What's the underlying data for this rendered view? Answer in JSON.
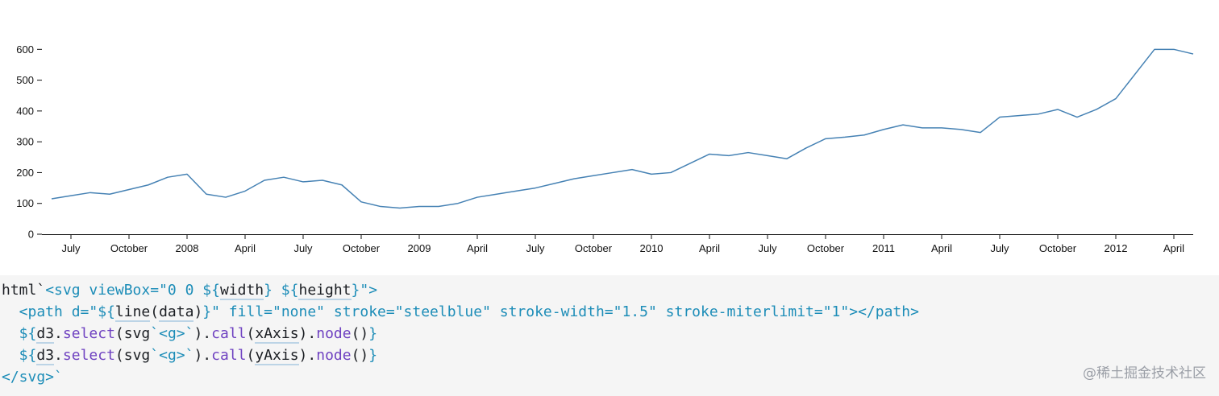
{
  "chart_data": {
    "type": "line",
    "color": "steelblue",
    "x": [
      "2007-06",
      "2007-07",
      "2007-08",
      "2007-09",
      "2007-10",
      "2007-11",
      "2007-12",
      "2008-01",
      "2008-02",
      "2008-03",
      "2008-04",
      "2008-05",
      "2008-06",
      "2008-07",
      "2008-08",
      "2008-09",
      "2008-10",
      "2008-11",
      "2008-12",
      "2009-01",
      "2009-02",
      "2009-03",
      "2009-04",
      "2009-05",
      "2009-06",
      "2009-07",
      "2009-08",
      "2009-09",
      "2009-10",
      "2009-11",
      "2009-12",
      "2010-01",
      "2010-02",
      "2010-03",
      "2010-04",
      "2010-05",
      "2010-06",
      "2010-07",
      "2010-08",
      "2010-09",
      "2010-10",
      "2010-11",
      "2010-12",
      "2011-01",
      "2011-02",
      "2011-03",
      "2011-04",
      "2011-05",
      "2011-06",
      "2011-07",
      "2011-08",
      "2011-09",
      "2011-10",
      "2011-11",
      "2011-12",
      "2012-01",
      "2012-02",
      "2012-03",
      "2012-04",
      "2012-05"
    ],
    "values": [
      115,
      125,
      135,
      130,
      145,
      160,
      185,
      195,
      130,
      120,
      140,
      175,
      185,
      170,
      175,
      160,
      105,
      90,
      85,
      90,
      90,
      100,
      120,
      130,
      140,
      150,
      165,
      180,
      190,
      200,
      210,
      195,
      200,
      230,
      260,
      255,
      265,
      255,
      245,
      280,
      310,
      315,
      322,
      340,
      355,
      345,
      345,
      340,
      330,
      380,
      385,
      390,
      405,
      380,
      405,
      440,
      520,
      600,
      600,
      585
    ],
    "xlim": [
      "2007-06",
      "2012-05"
    ],
    "xticks": [
      {
        "value": "2007-07",
        "label": "July"
      },
      {
        "value": "2007-10",
        "label": "October"
      },
      {
        "value": "2008-01",
        "label": "2008"
      },
      {
        "value": "2008-04",
        "label": "April"
      },
      {
        "value": "2008-07",
        "label": "July"
      },
      {
        "value": "2008-10",
        "label": "October"
      },
      {
        "value": "2009-01",
        "label": "2009"
      },
      {
        "value": "2009-04",
        "label": "April"
      },
      {
        "value": "2009-07",
        "label": "July"
      },
      {
        "value": "2009-10",
        "label": "October"
      },
      {
        "value": "2010-01",
        "label": "2010"
      },
      {
        "value": "2010-04",
        "label": "April"
      },
      {
        "value": "2010-07",
        "label": "July"
      },
      {
        "value": "2010-10",
        "label": "October"
      },
      {
        "value": "2011-01",
        "label": "2011"
      },
      {
        "value": "2011-04",
        "label": "April"
      },
      {
        "value": "2011-07",
        "label": "July"
      },
      {
        "value": "2011-10",
        "label": "October"
      },
      {
        "value": "2012-01",
        "label": "2012"
      },
      {
        "value": "2012-04",
        "label": "April"
      }
    ],
    "ylim": [
      0,
      640
    ],
    "yticks": [
      0,
      100,
      200,
      300,
      400,
      500,
      600
    ]
  },
  "code": [
    [
      "html`",
      "<svg viewBox=\"0 0 ${",
      "width",
      "} ${",
      "height",
      "}\">"
    ],
    [
      "  <path d=\"${",
      "line",
      "(",
      "data",
      ")",
      "}\" fill=\"none\" stroke=\"steelblue\" stroke-width=\"1.5\" stroke-miterlimit=\"1\"></path>"
    ],
    [
      "  ${",
      "d3",
      ".",
      "select",
      "(svg",
      "`<g>`",
      ").",
      "call",
      "(",
      "xAxis",
      ").",
      "node",
      "()",
      "}"
    ],
    [
      "  ${",
      "d3",
      ".",
      "select",
      "(svg",
      "`<g>`",
      ").",
      "call",
      "(",
      "yAxis",
      ").",
      "node",
      "()",
      "}"
    ],
    [
      "</svg>`"
    ]
  ],
  "watermark": "@稀土掘金技术社区"
}
